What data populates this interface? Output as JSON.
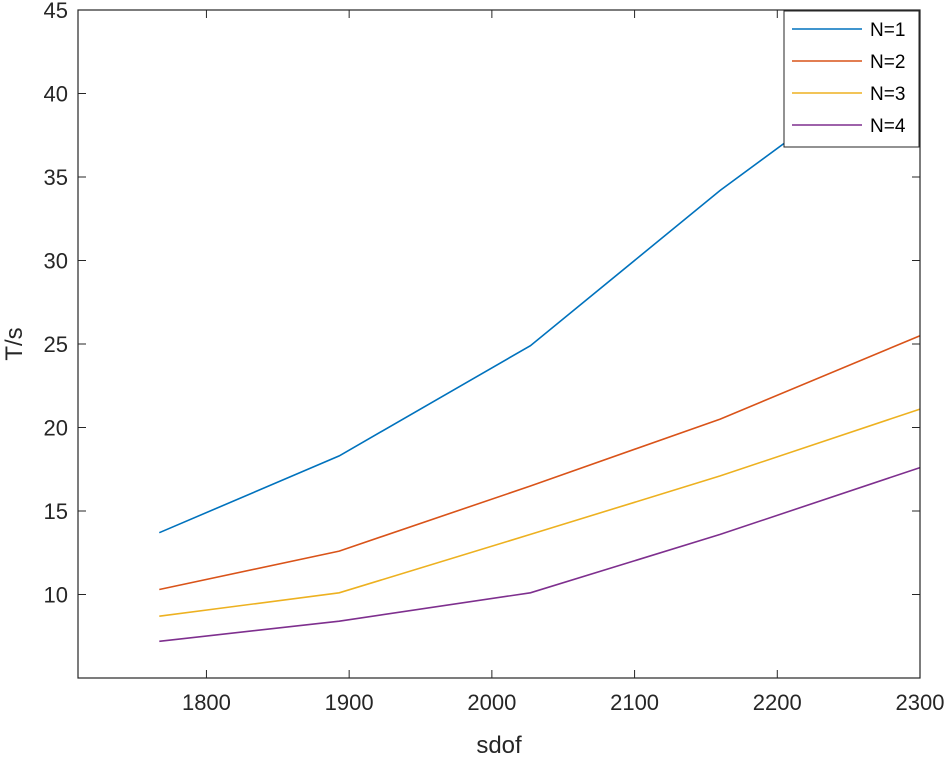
{
  "chart_data": {
    "type": "line",
    "title": "",
    "xlabel": "sdof",
    "ylabel": "T/s",
    "xlim": [
      1710,
      2300
    ],
    "ylim": [
      5,
      45
    ],
    "xticks": [
      1800,
      1900,
      2000,
      2100,
      2200,
      2300
    ],
    "yticks": [
      10,
      15,
      20,
      25,
      30,
      35,
      40,
      45
    ],
    "x": [
      1767,
      1893,
      2027,
      2160,
      2300
    ],
    "series": [
      {
        "name": "N=1",
        "color": "#0072bd",
        "values": [
          13.7,
          18.3,
          24.9,
          34.2,
          43.0
        ]
      },
      {
        "name": "N=2",
        "color": "#d95319",
        "values": [
          10.3,
          12.6,
          16.5,
          20.5,
          25.5
        ]
      },
      {
        "name": "N=3",
        "color": "#edb120",
        "values": [
          8.7,
          10.1,
          13.6,
          17.1,
          21.1
        ]
      },
      {
        "name": "N=4",
        "color": "#7e2f8e",
        "values": [
          7.2,
          8.4,
          10.1,
          13.6,
          17.6
        ]
      }
    ],
    "grid": false,
    "legend_position": "top-right"
  }
}
